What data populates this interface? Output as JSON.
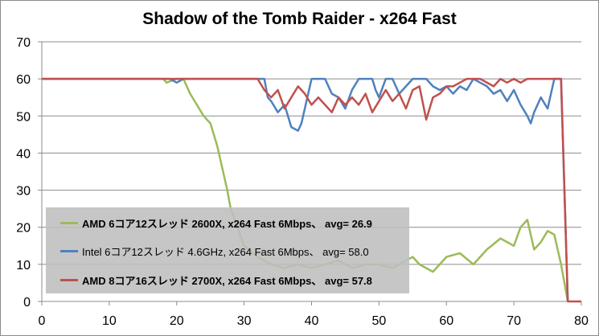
{
  "chart_data": {
    "type": "line",
    "title": "Shadow of the Tomb Raider - x264 Fast",
    "xlabel": "",
    "ylabel": "",
    "xlim": [
      0,
      80
    ],
    "ylim": [
      0,
      70
    ],
    "x_ticks": [
      "0",
      "10",
      "20",
      "30",
      "40",
      "50",
      "60",
      "70",
      "80"
    ],
    "y_ticks": [
      "0",
      "10",
      "20",
      "30",
      "40",
      "50",
      "60",
      "70"
    ],
    "grid": "horizontal",
    "legend_position": "bottom-left",
    "series": [
      {
        "name": "AMD 6コア12スレッド 2600X, x264 Fast 6Mbps、 avg= 26.9",
        "color": "#9bbb59",
        "bold": true,
        "points": [
          [
            0,
            60
          ],
          [
            18,
            60
          ],
          [
            18.5,
            59
          ],
          [
            20,
            60
          ],
          [
            21,
            60
          ],
          [
            21.5,
            58
          ],
          [
            22,
            56
          ],
          [
            23,
            53
          ],
          [
            24,
            50
          ],
          [
            25,
            48
          ],
          [
            26,
            42
          ],
          [
            27,
            34
          ],
          [
            27.5,
            30
          ],
          [
            28,
            25
          ],
          [
            29,
            20
          ],
          [
            30,
            15
          ],
          [
            32,
            12
          ],
          [
            34,
            10
          ],
          [
            36,
            9
          ],
          [
            38,
            10
          ],
          [
            40,
            9
          ],
          [
            42,
            10
          ],
          [
            44,
            11
          ],
          [
            46,
            9
          ],
          [
            48,
            10
          ],
          [
            50,
            10
          ],
          [
            52,
            9
          ],
          [
            54,
            11
          ],
          [
            55,
            12
          ],
          [
            56,
            10
          ],
          [
            58,
            8
          ],
          [
            60,
            12
          ],
          [
            62,
            13
          ],
          [
            64,
            10
          ],
          [
            66,
            14
          ],
          [
            68,
            17
          ],
          [
            70,
            15
          ],
          [
            71,
            20
          ],
          [
            72,
            22
          ],
          [
            73,
            14
          ],
          [
            74,
            16
          ],
          [
            75,
            19
          ],
          [
            76,
            18
          ],
          [
            77,
            10
          ],
          [
            77.5,
            5
          ],
          [
            78,
            0
          ]
        ]
      },
      {
        "name": "Intel 6コア12スレッド 4.6GHz, x264 Fast 6Mbps、 avg= 58.0",
        "color": "#4f81bd",
        "bold": false,
        "points": [
          [
            0,
            60
          ],
          [
            19,
            60
          ],
          [
            20,
            59
          ],
          [
            21,
            60
          ],
          [
            33,
            60
          ],
          [
            33.5,
            55
          ],
          [
            34,
            54
          ],
          [
            35,
            51
          ],
          [
            36,
            53
          ],
          [
            37,
            47
          ],
          [
            38,
            46
          ],
          [
            38.5,
            48
          ],
          [
            39,
            52
          ],
          [
            40,
            60
          ],
          [
            42,
            60
          ],
          [
            43,
            56
          ],
          [
            44,
            55
          ],
          [
            45,
            52
          ],
          [
            46,
            57
          ],
          [
            47,
            60
          ],
          [
            49,
            60
          ],
          [
            49.5,
            57
          ],
          [
            50,
            55
          ],
          [
            51,
            60
          ],
          [
            52,
            60
          ],
          [
            53,
            56
          ],
          [
            54,
            58
          ],
          [
            55,
            60
          ],
          [
            57,
            60
          ],
          [
            58,
            58
          ],
          [
            59,
            57
          ],
          [
            60,
            58
          ],
          [
            61,
            56
          ],
          [
            62,
            58
          ],
          [
            63,
            57
          ],
          [
            64,
            60
          ],
          [
            65,
            59
          ],
          [
            66,
            58
          ],
          [
            67,
            56
          ],
          [
            68,
            57
          ],
          [
            69,
            54
          ],
          [
            70,
            57
          ],
          [
            71,
            53
          ],
          [
            72,
            50
          ],
          [
            72.5,
            48
          ],
          [
            73,
            51
          ],
          [
            74,
            55
          ],
          [
            75,
            52
          ],
          [
            76,
            60
          ],
          [
            77,
            60
          ],
          [
            78,
            0
          ]
        ]
      },
      {
        "name": "AMD 8コア16スレッド 2700X, x264 Fast 6Mbps、 avg= 57.8",
        "color": "#c0504d",
        "bold": true,
        "points": [
          [
            0,
            60
          ],
          [
            32,
            60
          ],
          [
            33,
            57
          ],
          [
            34,
            55
          ],
          [
            35,
            57
          ],
          [
            36,
            52
          ],
          [
            37,
            55
          ],
          [
            38,
            58
          ],
          [
            39,
            56
          ],
          [
            40,
            53
          ],
          [
            41,
            55
          ],
          [
            42,
            53
          ],
          [
            43,
            51
          ],
          [
            44,
            55
          ],
          [
            45,
            53
          ],
          [
            46,
            55
          ],
          [
            47,
            53
          ],
          [
            48,
            56
          ],
          [
            49,
            51
          ],
          [
            50,
            54
          ],
          [
            51,
            57
          ],
          [
            52,
            54
          ],
          [
            53,
            56
          ],
          [
            54,
            52
          ],
          [
            55,
            57
          ],
          [
            56,
            58
          ],
          [
            57,
            49
          ],
          [
            58,
            55
          ],
          [
            59,
            56
          ],
          [
            60,
            58
          ],
          [
            61,
            58
          ],
          [
            62,
            59
          ],
          [
            63,
            60
          ],
          [
            65,
            60
          ],
          [
            67,
            58
          ],
          [
            68,
            60
          ],
          [
            69,
            59
          ],
          [
            70,
            60
          ],
          [
            71,
            59
          ],
          [
            72,
            60
          ],
          [
            76,
            60
          ],
          [
            77,
            60
          ],
          [
            78,
            0
          ],
          [
            80,
            0
          ]
        ]
      }
    ]
  }
}
